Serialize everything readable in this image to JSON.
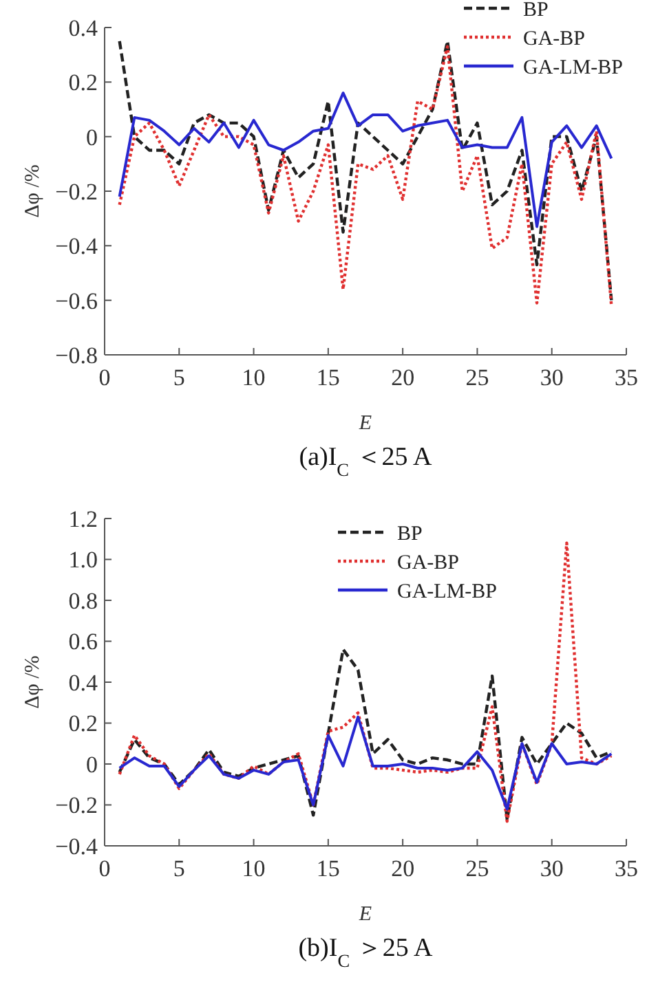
{
  "chart_data": [
    {
      "type": "line",
      "title": "(a)I$_{C}$ ＜25 A",
      "xlabel": "E",
      "ylabel": "Δφ /%",
      "x": [
        1,
        2,
        3,
        4,
        5,
        6,
        7,
        8,
        9,
        10,
        11,
        12,
        13,
        14,
        15,
        16,
        17,
        18,
        19,
        20,
        21,
        22,
        23,
        24,
        25,
        26,
        27,
        28,
        29,
        30,
        31,
        32,
        33,
        34
      ],
      "xlim": [
        0,
        35
      ],
      "xticks": [
        0,
        5,
        10,
        15,
        20,
        25,
        30,
        35
      ],
      "ylim": [
        -0.8,
        0.4
      ],
      "yticks": [
        -0.8,
        -0.6,
        -0.4,
        -0.2,
        0,
        0.2,
        0.4
      ],
      "legend": "top right",
      "grid": false,
      "series": [
        {
          "name": "BP",
          "color": "#222222",
          "line_style": "dashed",
          "values": [
            0.35,
            0.0,
            -0.05,
            -0.05,
            -0.1,
            0.05,
            0.08,
            0.05,
            0.05,
            0.0,
            -0.27,
            -0.05,
            -0.15,
            -0.1,
            0.13,
            -0.35,
            0.05,
            0.0,
            -0.05,
            -0.1,
            0.0,
            0.1,
            0.35,
            -0.05,
            0.05,
            -0.25,
            -0.2,
            -0.05,
            -0.47,
            0.0,
            0.0,
            -0.2,
            0.0,
            -0.6
          ]
        },
        {
          "name": "GA-BP",
          "color": "#e03030",
          "line_style": "dotted",
          "values": [
            -0.25,
            0.0,
            0.05,
            -0.05,
            -0.18,
            -0.05,
            0.08,
            0.0,
            0.0,
            -0.03,
            -0.28,
            -0.07,
            -0.31,
            -0.2,
            -0.03,
            -0.56,
            -0.1,
            -0.12,
            -0.07,
            -0.23,
            0.13,
            0.1,
            0.33,
            -0.2,
            -0.07,
            -0.41,
            -0.37,
            -0.1,
            -0.61,
            -0.1,
            -0.02,
            -0.23,
            0.02,
            -0.62
          ]
        },
        {
          "name": "GA-LM-BP",
          "color": "#2828d0",
          "line_style": "solid",
          "values": [
            -0.22,
            0.07,
            0.06,
            0.02,
            -0.03,
            0.03,
            -0.02,
            0.05,
            -0.04,
            0.06,
            -0.03,
            -0.05,
            -0.02,
            0.02,
            0.03,
            0.16,
            0.04,
            0.08,
            0.08,
            0.02,
            0.04,
            0.05,
            0.06,
            -0.04,
            -0.03,
            -0.04,
            -0.04,
            0.07,
            -0.33,
            -0.02,
            0.04,
            -0.04,
            0.04,
            -0.08
          ]
        }
      ]
    },
    {
      "type": "line",
      "title": "(b)I$_{C}$ ＞25 A",
      "xlabel": "E",
      "ylabel": "Δφ /%",
      "x": [
        1,
        2,
        3,
        4,
        5,
        6,
        7,
        8,
        9,
        10,
        11,
        12,
        13,
        14,
        15,
        16,
        17,
        18,
        19,
        20,
        21,
        22,
        23,
        24,
        25,
        26,
        27,
        28,
        29,
        30,
        31,
        32,
        33,
        34
      ],
      "xlim": [
        0,
        35
      ],
      "xticks": [
        0,
        5,
        10,
        15,
        20,
        25,
        30,
        35
      ],
      "ylim": [
        -0.4,
        1.2
      ],
      "yticks": [
        -0.4,
        -0.2,
        0,
        0.2,
        0.4,
        0.6,
        0.8,
        {
          "value": 1,
          "label": "1.0"
        },
        1.2
      ],
      "legend": "top",
      "grid": false,
      "series": [
        {
          "name": "BP",
          "color": "#222222",
          "line_style": "dashed",
          "values": [
            -0.04,
            0.12,
            0.03,
            0.0,
            -0.1,
            -0.03,
            0.07,
            -0.04,
            -0.06,
            -0.02,
            0.0,
            0.02,
            0.04,
            -0.25,
            0.15,
            0.56,
            0.46,
            0.05,
            0.12,
            0.02,
            0.0,
            0.03,
            0.02,
            0.0,
            0.0,
            0.43,
            -0.27,
            0.13,
            0.0,
            0.1,
            0.2,
            0.15,
            0.03,
            0.06
          ]
        },
        {
          "name": "GA-BP",
          "color": "#e03030",
          "line_style": "dotted",
          "values": [
            -0.05,
            0.14,
            0.04,
            0.0,
            -0.12,
            -0.03,
            0.05,
            -0.05,
            -0.07,
            -0.01,
            -0.05,
            0.01,
            0.05,
            -0.2,
            0.16,
            0.18,
            0.25,
            -0.02,
            -0.02,
            -0.03,
            -0.04,
            -0.03,
            -0.04,
            -0.02,
            -0.02,
            0.28,
            -0.28,
            0.1,
            -0.1,
            0.1,
            1.08,
            0.03,
            0.0,
            0.04
          ]
        },
        {
          "name": "GA-LM-BP",
          "color": "#2828d0",
          "line_style": "solid",
          "values": [
            -0.02,
            0.03,
            -0.01,
            -0.01,
            -0.11,
            -0.03,
            0.04,
            -0.05,
            -0.07,
            -0.03,
            -0.05,
            0.01,
            0.02,
            -0.2,
            0.14,
            -0.01,
            0.23,
            -0.01,
            -0.01,
            0.0,
            -0.02,
            -0.02,
            -0.03,
            -0.02,
            0.06,
            -0.03,
            -0.22,
            0.1,
            -0.09,
            0.1,
            0.0,
            0.01,
            0.0,
            0.05
          ]
        }
      ]
    }
  ]
}
